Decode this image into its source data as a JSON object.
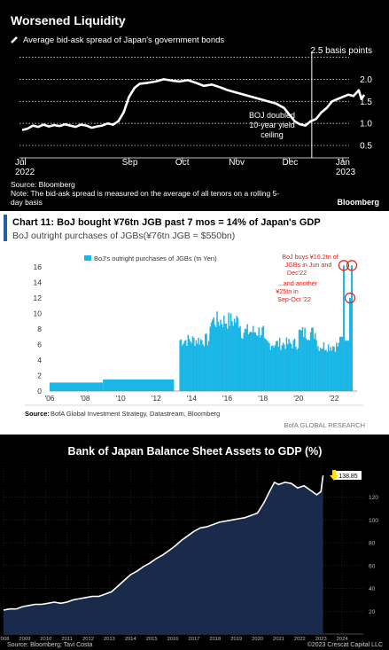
{
  "chart_data": [
    {
      "type": "line",
      "title": "Worsened Liquidity",
      "subtitle": "Average bid-ask spread of Japan's government bonds",
      "x_ticks": [
        {
          "label": "Jul",
          "sub": "2022",
          "pos": 0
        },
        {
          "label": "Sep",
          "sub": "",
          "pos": 2
        },
        {
          "label": "Oct",
          "sub": "",
          "pos": 3
        },
        {
          "label": "Nov",
          "sub": "",
          "pos": 4
        },
        {
          "label": "Dec",
          "sub": "",
          "pos": 5
        },
        {
          "label": "Jan",
          "sub": "2023",
          "pos": 6
        }
      ],
      "xlim": [
        -0.05,
        6.55
      ],
      "ylim": [
        0.3,
        2.55
      ],
      "y_ticks": [
        0.5,
        1.0,
        1.5,
        2.0
      ],
      "y_tick_labels": [
        "0.5",
        "1.0",
        "1.5",
        "2.0"
      ],
      "y_top_label": "2.5 basis points",
      "series": [
        {
          "x": [
            0.0,
            0.1,
            0.2,
            0.3,
            0.4,
            0.5,
            0.6,
            0.7,
            0.8,
            0.9,
            1.0,
            1.1,
            1.2,
            1.3,
            1.4,
            1.5,
            1.6,
            1.7,
            1.8,
            1.9,
            2.0,
            2.1,
            2.2,
            2.35,
            2.5,
            2.65,
            2.8,
            2.95,
            3.1,
            3.25,
            3.4,
            3.55,
            3.7,
            3.85,
            4.0,
            4.15,
            4.3,
            4.45,
            4.6,
            4.75,
            4.9,
            5.0,
            5.1,
            5.2,
            5.3,
            5.4,
            5.5,
            5.6,
            5.7,
            5.8,
            5.9,
            6.0,
            6.1,
            6.2,
            6.3,
            6.35,
            6.4
          ],
          "values": [
            0.85,
            0.88,
            0.95,
            0.92,
            0.97,
            0.93,
            0.96,
            0.94,
            0.98,
            0.95,
            0.92,
            0.97,
            0.95,
            0.9,
            0.93,
            0.95,
            1.0,
            0.97,
            1.05,
            1.25,
            1.6,
            1.8,
            1.9,
            1.92,
            1.95,
            2.0,
            1.97,
            1.95,
            1.98,
            1.92,
            1.85,
            1.88,
            1.82,
            1.75,
            1.7,
            1.65,
            1.6,
            1.55,
            1.5,
            1.45,
            1.35,
            1.2,
            1.05,
            0.98,
            0.95,
            1.05,
            1.1,
            1.25,
            1.35,
            1.5,
            1.55,
            1.6,
            1.65,
            1.62,
            1.75,
            1.55,
            1.65
          ]
        }
      ],
      "annotation": {
        "lines": [
          "BOJ doubled",
          "10-year yield",
          "ceiling"
        ],
        "x": 5.42
      },
      "source": "Source: Bloomberg",
      "note_lines": [
        "Note: The bid-ask spread is measured on the average of all tenors on a rolling 5-",
        "day basis"
      ],
      "brand": "Bloomberg",
      "colors": {
        "line": "#ffffff",
        "background": "#000000"
      }
    },
    {
      "type": "bar",
      "title": "Chart 11: BoJ bought ¥76tn JGB past 7 mos = 14% of Japan's GDP",
      "subtitle": "BoJ outright purchases of JGBs(¥76tn JGB = $550bn)",
      "legend": "BoJ's outright purchases of JGBs (tn Yen)",
      "legend_position": "top-left",
      "xlim": [
        2006,
        2023.3
      ],
      "ylim": [
        0,
        16
      ],
      "y_ticks": [
        0,
        2,
        4,
        6,
        8,
        10,
        12,
        14,
        16
      ],
      "x_tick_labels": [
        "'06",
        "'08",
        "'10",
        "'12",
        "'14",
        "'16",
        "'18",
        "'20",
        "'22"
      ],
      "x_tick_years": [
        2006,
        2008,
        2010,
        2012,
        2014,
        2016,
        2018,
        2020,
        2022
      ],
      "segments": [
        {
          "start": 2006.0,
          "end": 2009.0,
          "value": 1.1
        },
        {
          "start": 2009.0,
          "end": 2013.0,
          "value": 1.5
        },
        {
          "start": 2013.3,
          "end": 2015.0,
          "value": 7.1
        },
        {
          "start": 2015.0,
          "end": 2016.7,
          "value": 9.8
        },
        {
          "start": 2016.7,
          "end": 2018.0,
          "value": 8.3
        },
        {
          "start": 2018.0,
          "end": 2020.0,
          "value": 6.6
        },
        {
          "start": 2020.0,
          "end": 2021.0,
          "value": 8.1
        },
        {
          "start": 2021.0,
          "end": 2022.3,
          "value": 6.3
        },
        {
          "start": 2022.3,
          "end": 2022.5,
          "value": 7.0
        },
        {
          "start": 2022.5,
          "end": 2022.6,
          "value": 16.2
        },
        {
          "start": 2022.6,
          "end": 2022.85,
          "value": 6.5
        },
        {
          "start": 2022.85,
          "end": 2022.95,
          "value": 12.0
        },
        {
          "start": 2022.95,
          "end": 2023.05,
          "value": 16.2
        }
      ],
      "annotations": [
        {
          "lines": [
            "BoJ buys ¥16.2tn of",
            "JGBs in Jun and",
            "Dec'22"
          ]
        },
        {
          "lines": [
            "...and another",
            "¥25tn in",
            "Sep-Oct '22"
          ]
        }
      ],
      "source_label": "Source:",
      "source": "BofA Global Investment Strategy, Datastream, Bloomberg",
      "brand": "BofA GLOBAL RESEARCH",
      "colors": {
        "bars": "#19b6e6",
        "annotation": "#e0201c",
        "title_accent": "#1f5fa8"
      }
    },
    {
      "type": "line",
      "title": "Bank of Japan Balance Sheet Assets to GDP (%)",
      "xlim": [
        2008,
        2025
      ],
      "ylim": [
        0,
        150
      ],
      "x_tick_labels": [
        "2008",
        "2009",
        "2010",
        "2011",
        "2012",
        "2013",
        "2014",
        "2015",
        "2016",
        "2017",
        "2018",
        "2019",
        "2020",
        "2021",
        "2022",
        "2023",
        "2024"
      ],
      "x_tick_years": [
        2008,
        2009,
        2010,
        2011,
        2012,
        2013,
        2014,
        2015,
        2016,
        2017,
        2018,
        2019,
        2020,
        2021,
        2022,
        2023,
        2024
      ],
      "y_ticks": [
        20,
        40,
        60,
        80,
        100,
        120
      ],
      "y_tick_labels": [
        "20",
        "40",
        "60",
        "80",
        "100",
        "120"
      ],
      "last_value_label": "138.85",
      "series": [
        {
          "x": [
            2008.0,
            2008.3,
            2008.6,
            2008.9,
            2009.2,
            2009.5,
            2009.8,
            2010.1,
            2010.4,
            2010.7,
            2011.0,
            2011.3,
            2011.6,
            2011.9,
            2012.2,
            2012.5,
            2012.8,
            2013.1,
            2013.4,
            2013.7,
            2014.0,
            2014.3,
            2014.6,
            2014.9,
            2015.2,
            2015.5,
            2015.8,
            2016.1,
            2016.4,
            2016.7,
            2017.0,
            2017.3,
            2017.6,
            2017.9,
            2018.2,
            2018.5,
            2018.8,
            2019.1,
            2019.4,
            2019.7,
            2020.0,
            2020.3,
            2020.6,
            2020.8,
            2021.0,
            2021.3,
            2021.6,
            2021.9,
            2022.2,
            2022.5,
            2022.8,
            2023.0,
            2023.1
          ],
          "values": [
            21,
            22,
            22,
            24,
            25,
            26,
            26,
            27,
            28,
            27,
            28,
            30,
            31,
            32,
            33,
            33,
            35,
            37,
            42,
            47,
            52,
            55,
            59,
            62,
            66,
            69,
            73,
            77,
            82,
            86,
            90,
            93,
            94,
            96,
            98,
            99,
            100,
            101,
            102,
            104,
            106,
            115,
            126,
            133,
            131,
            133,
            132,
            128,
            130,
            126,
            122,
            125,
            139
          ]
        }
      ],
      "source": "Source: Bloomberg; Tavi Costa",
      "copyright": "©2023 Crescat Capital LLC",
      "colors": {
        "line": "#ffffff",
        "area": "#1a2a4a",
        "arrow": "#ffe000",
        "background": "#000000"
      }
    }
  ]
}
